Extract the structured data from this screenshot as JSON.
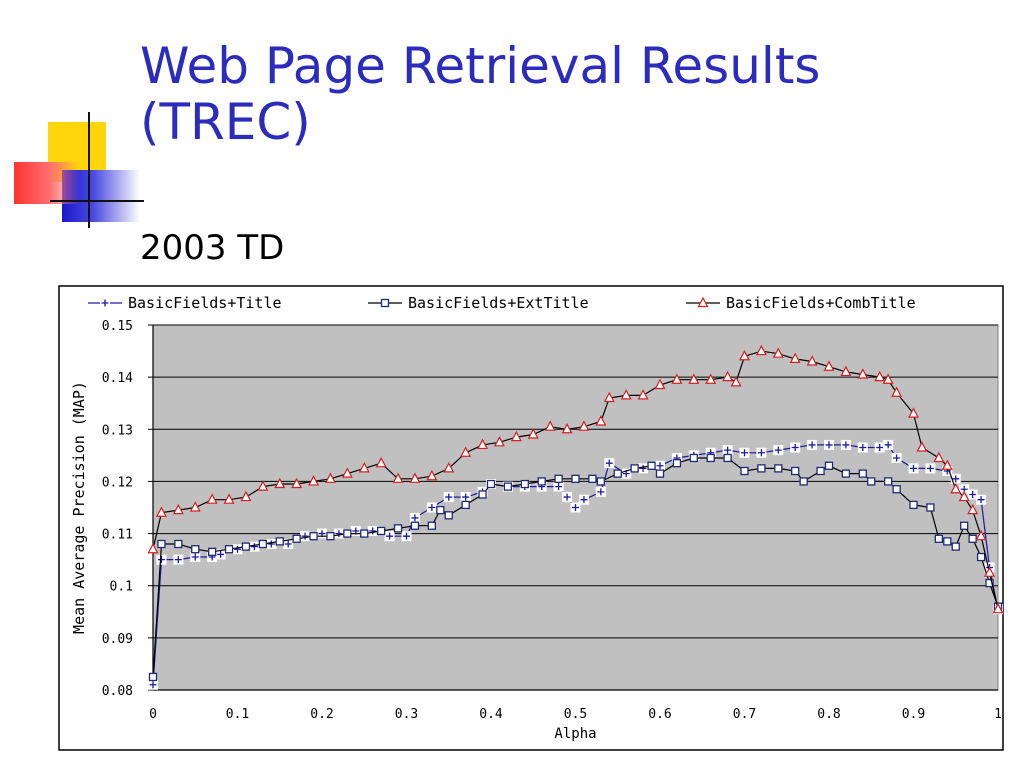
{
  "slide": {
    "title_line1": "Web Page Retrieval Results",
    "title_line2": "(TREC)",
    "subtitle": "2003 TD"
  },
  "colors": {
    "title": "#2b2bbd",
    "plot_bg": "#c0c0c0",
    "series_title": "#1a1aa8",
    "series_ext": "#1c2a78",
    "series_comb": "#d81e1e"
  },
  "chart_data": {
    "type": "line",
    "xlabel": "Alpha",
    "ylabel": "Mean Average Precision (MAP)",
    "xlim": [
      0,
      1
    ],
    "ylim": [
      0.08,
      0.15
    ],
    "x_ticks": [
      "0",
      "0.1",
      "0.2",
      "0.3",
      "0.4",
      "0.5",
      "0.6",
      "0.7",
      "0.8",
      "0.9",
      "1"
    ],
    "y_ticks": [
      "0.08",
      "0.09",
      "0.1",
      "0.11",
      "0.12",
      "0.13",
      "0.14",
      "0.15"
    ],
    "grid": "horizontal",
    "legend_position": "top",
    "series": [
      {
        "name": "BasicFields+Title",
        "marker": "plus",
        "points": [
          [
            0,
            0.081
          ],
          [
            0.01,
            0.105
          ],
          [
            0.03,
            0.105
          ],
          [
            0.05,
            0.1055
          ],
          [
            0.07,
            0.1055
          ],
          [
            0.08,
            0.106
          ],
          [
            0.1,
            0.107
          ],
          [
            0.12,
            0.1075
          ],
          [
            0.14,
            0.108
          ],
          [
            0.16,
            0.108
          ],
          [
            0.18,
            0.1095
          ],
          [
            0.2,
            0.11
          ],
          [
            0.22,
            0.11
          ],
          [
            0.24,
            0.1105
          ],
          [
            0.26,
            0.1105
          ],
          [
            0.28,
            0.1095
          ],
          [
            0.3,
            0.1095
          ],
          [
            0.31,
            0.113
          ],
          [
            0.33,
            0.115
          ],
          [
            0.35,
            0.117
          ],
          [
            0.37,
            0.117
          ],
          [
            0.39,
            0.118
          ],
          [
            0.4,
            0.1195
          ],
          [
            0.42,
            0.119
          ],
          [
            0.44,
            0.119
          ],
          [
            0.46,
            0.119
          ],
          [
            0.48,
            0.119
          ],
          [
            0.49,
            0.117
          ],
          [
            0.5,
            0.115
          ],
          [
            0.51,
            0.1165
          ],
          [
            0.53,
            0.118
          ],
          [
            0.54,
            0.1235
          ],
          [
            0.56,
            0.1215
          ],
          [
            0.58,
            0.1225
          ],
          [
            0.6,
            0.123
          ],
          [
            0.62,
            0.1245
          ],
          [
            0.64,
            0.125
          ],
          [
            0.66,
            0.1255
          ],
          [
            0.68,
            0.126
          ],
          [
            0.7,
            0.1255
          ],
          [
            0.72,
            0.1255
          ],
          [
            0.74,
            0.126
          ],
          [
            0.76,
            0.1265
          ],
          [
            0.78,
            0.127
          ],
          [
            0.8,
            0.127
          ],
          [
            0.82,
            0.127
          ],
          [
            0.84,
            0.1265
          ],
          [
            0.86,
            0.1265
          ],
          [
            0.87,
            0.127
          ],
          [
            0.88,
            0.1245
          ],
          [
            0.9,
            0.1225
          ],
          [
            0.92,
            0.1225
          ],
          [
            0.94,
            0.122
          ],
          [
            0.95,
            0.1205
          ],
          [
            0.96,
            0.1185
          ],
          [
            0.97,
            0.1175
          ],
          [
            0.98,
            0.1165
          ],
          [
            0.99,
            0.1035
          ],
          [
            1,
            0.0955
          ]
        ]
      },
      {
        "name": "BasicFields+ExtTitle",
        "marker": "square",
        "points": [
          [
            0,
            0.0825
          ],
          [
            0.01,
            0.108
          ],
          [
            0.03,
            0.108
          ],
          [
            0.05,
            0.107
          ],
          [
            0.07,
            0.1065
          ],
          [
            0.09,
            0.107
          ],
          [
            0.11,
            0.1075
          ],
          [
            0.13,
            0.108
          ],
          [
            0.15,
            0.1085
          ],
          [
            0.17,
            0.109
          ],
          [
            0.19,
            0.1095
          ],
          [
            0.21,
            0.1095
          ],
          [
            0.23,
            0.11
          ],
          [
            0.25,
            0.11
          ],
          [
            0.27,
            0.1105
          ],
          [
            0.29,
            0.111
          ],
          [
            0.31,
            0.1115
          ],
          [
            0.33,
            0.1115
          ],
          [
            0.34,
            0.1145
          ],
          [
            0.35,
            0.1135
          ],
          [
            0.37,
            0.1155
          ],
          [
            0.39,
            0.1175
          ],
          [
            0.4,
            0.1195
          ],
          [
            0.42,
            0.119
          ],
          [
            0.44,
            0.1195
          ],
          [
            0.46,
            0.12
          ],
          [
            0.48,
            0.1205
          ],
          [
            0.5,
            0.1205
          ],
          [
            0.52,
            0.1205
          ],
          [
            0.53,
            0.12
          ],
          [
            0.55,
            0.1215
          ],
          [
            0.57,
            0.1225
          ],
          [
            0.59,
            0.123
          ],
          [
            0.6,
            0.1215
          ],
          [
            0.62,
            0.1235
          ],
          [
            0.64,
            0.1245
          ],
          [
            0.66,
            0.1245
          ],
          [
            0.68,
            0.1245
          ],
          [
            0.7,
            0.122
          ],
          [
            0.72,
            0.1225
          ],
          [
            0.74,
            0.1225
          ],
          [
            0.76,
            0.122
          ],
          [
            0.77,
            0.12
          ],
          [
            0.79,
            0.122
          ],
          [
            0.8,
            0.123
          ],
          [
            0.82,
            0.1215
          ],
          [
            0.84,
            0.1215
          ],
          [
            0.85,
            0.12
          ],
          [
            0.87,
            0.12
          ],
          [
            0.88,
            0.1185
          ],
          [
            0.9,
            0.1155
          ],
          [
            0.92,
            0.115
          ],
          [
            0.93,
            0.109
          ],
          [
            0.94,
            0.1085
          ],
          [
            0.95,
            0.1075
          ],
          [
            0.96,
            0.1115
          ],
          [
            0.97,
            0.109
          ],
          [
            0.98,
            0.1055
          ],
          [
            0.99,
            0.1005
          ],
          [
            1,
            0.096
          ]
        ]
      },
      {
        "name": "BasicFields+CombTitle",
        "marker": "triangle",
        "points": [
          [
            0,
            0.107
          ],
          [
            0.01,
            0.114
          ],
          [
            0.03,
            0.1145
          ],
          [
            0.05,
            0.115
          ],
          [
            0.07,
            0.1165
          ],
          [
            0.09,
            0.1165
          ],
          [
            0.11,
            0.117
          ],
          [
            0.13,
            0.119
          ],
          [
            0.15,
            0.1195
          ],
          [
            0.17,
            0.1195
          ],
          [
            0.19,
            0.12
          ],
          [
            0.21,
            0.1205
          ],
          [
            0.23,
            0.1215
          ],
          [
            0.25,
            0.1225
          ],
          [
            0.27,
            0.1235
          ],
          [
            0.29,
            0.1205
          ],
          [
            0.31,
            0.1205
          ],
          [
            0.33,
            0.121
          ],
          [
            0.35,
            0.1225
          ],
          [
            0.37,
            0.1255
          ],
          [
            0.39,
            0.127
          ],
          [
            0.41,
            0.1275
          ],
          [
            0.43,
            0.1285
          ],
          [
            0.45,
            0.129
          ],
          [
            0.47,
            0.1305
          ],
          [
            0.49,
            0.13
          ],
          [
            0.51,
            0.1305
          ],
          [
            0.53,
            0.1315
          ],
          [
            0.54,
            0.136
          ],
          [
            0.56,
            0.1365
          ],
          [
            0.58,
            0.1365
          ],
          [
            0.6,
            0.1385
          ],
          [
            0.62,
            0.1395
          ],
          [
            0.64,
            0.1395
          ],
          [
            0.66,
            0.1395
          ],
          [
            0.68,
            0.14
          ],
          [
            0.69,
            0.139
          ],
          [
            0.7,
            0.144
          ],
          [
            0.72,
            0.145
          ],
          [
            0.74,
            0.1445
          ],
          [
            0.76,
            0.1435
          ],
          [
            0.78,
            0.143
          ],
          [
            0.8,
            0.142
          ],
          [
            0.82,
            0.141
          ],
          [
            0.84,
            0.1405
          ],
          [
            0.86,
            0.14
          ],
          [
            0.87,
            0.1395
          ],
          [
            0.88,
            0.137
          ],
          [
            0.9,
            0.133
          ],
          [
            0.91,
            0.1265
          ],
          [
            0.93,
            0.1245
          ],
          [
            0.94,
            0.123
          ],
          [
            0.95,
            0.1185
          ],
          [
            0.96,
            0.117
          ],
          [
            0.97,
            0.1145
          ],
          [
            0.98,
            0.1095
          ],
          [
            0.99,
            0.1025
          ],
          [
            1,
            0.0955
          ]
        ]
      }
    ]
  }
}
